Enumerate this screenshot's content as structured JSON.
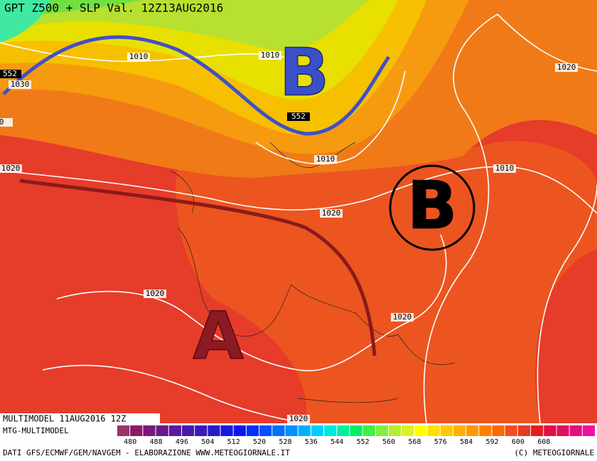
{
  "header": {
    "title": "GPT Z500 + SLP Val. 12Z13AUG2016"
  },
  "map": {
    "isobar_labels": [
      "1010",
      "1010",
      "1020",
      "552",
      "1030",
      "0",
      "552",
      "1010",
      "1020",
      "1010",
      "1020",
      "1020",
      "1020",
      "1020"
    ],
    "pressure_centers": [
      "B",
      "B",
      "A"
    ]
  },
  "footer": {
    "run": "MULTIMODEL 11AUG2016 12Z",
    "product": "MTG-MULTIMODEL",
    "source": "DATI GFS/ECMWF/GEM/NAVGEM - ELABORAZIONE WWW.METEOGIORNALE.IT",
    "copyright": "(C) METEOGIORNALE"
  },
  "colorbar": {
    "labels": [
      480,
      488,
      496,
      504,
      512,
      520,
      528,
      536,
      544,
      552,
      560,
      568,
      576,
      584,
      592,
      600,
      608
    ]
  }
}
